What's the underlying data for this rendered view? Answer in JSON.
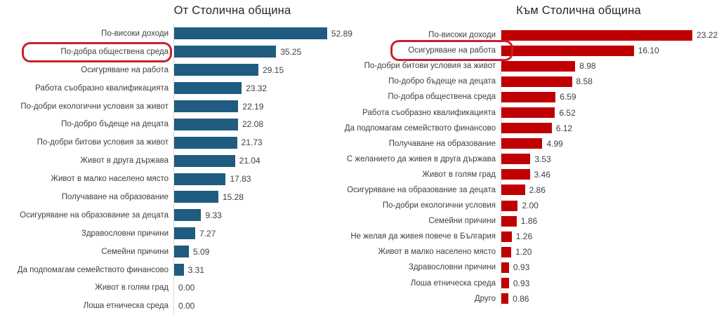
{
  "page": {
    "background": "#ffffff",
    "text_color": "#404040",
    "title_color": "#262626",
    "axis_line_color": "#d9d9d9"
  },
  "annotations": {
    "highlight_color": "#c9202b",
    "highlights": [
      {
        "chart": 0,
        "category": "По-добра обществена среда"
      },
      {
        "chart": 1,
        "category": "Осигуряване на работа"
      }
    ]
  },
  "chart_data": [
    {
      "type": "bar",
      "orientation": "horizontal",
      "title": "От Столична община",
      "bar_color": "#1f5c80",
      "grid": false,
      "value_labels": true,
      "value_decimals": 2,
      "xlim": [
        0,
        56
      ],
      "highlighted_category": "По-добра обществена среда",
      "categories": [
        "По-високи доходи",
        "По-добра обществена среда",
        "Осигуряване на работа",
        "Работа съобразно квалификацията",
        "По-добри екологични условия за живот",
        "По-добро бъдеще на децата",
        "По-добри битови условия за живот",
        "Живот в друга държава",
        "Живот в малко населено място",
        "Получаване на образование",
        "Осигуряване на образование за децата",
        "Здравословни причини",
        "Семейни причини",
        "Да подпомагам семейството финансово",
        "Живот в голям град",
        "Лоша етническа среда"
      ],
      "values": [
        52.89,
        35.25,
        29.15,
        23.32,
        22.19,
        22.08,
        21.73,
        21.04,
        17.83,
        15.28,
        9.33,
        7.27,
        5.09,
        3.31,
        0.0,
        0.0
      ]
    },
    {
      "type": "bar",
      "orientation": "horizontal",
      "title": "Към Столична община",
      "bar_color": "#c00000",
      "grid": false,
      "value_labels": true,
      "value_decimals": 2,
      "xlim": [
        0,
        26.5
      ],
      "highlighted_category": "Осигуряване на работа",
      "categories": [
        "По-високи доходи",
        "Осигуряване на работа",
        "По-добри битови условия за живот",
        "По-добро бъдеще на децата",
        "По-добра обществена среда",
        "Работа съобразно квалификацията",
        "Да подпомагам семейството финансово",
        "Получаване на образование",
        "С желанието да живея в друга държава",
        "Живот в голям град",
        "Осигуряване на образование за децата",
        "По-добри екологични условия",
        "Семейни причини",
        "Не желая да живея повече в България",
        "Живот в малко населено място",
        "Здравословни причини",
        "Лоша етническа среда",
        "Друго"
      ],
      "values": [
        23.22,
        16.1,
        8.98,
        8.58,
        6.59,
        6.52,
        6.12,
        4.99,
        3.53,
        3.46,
        2.86,
        2.0,
        1.86,
        1.26,
        1.2,
        0.93,
        0.93,
        0.86
      ]
    }
  ]
}
